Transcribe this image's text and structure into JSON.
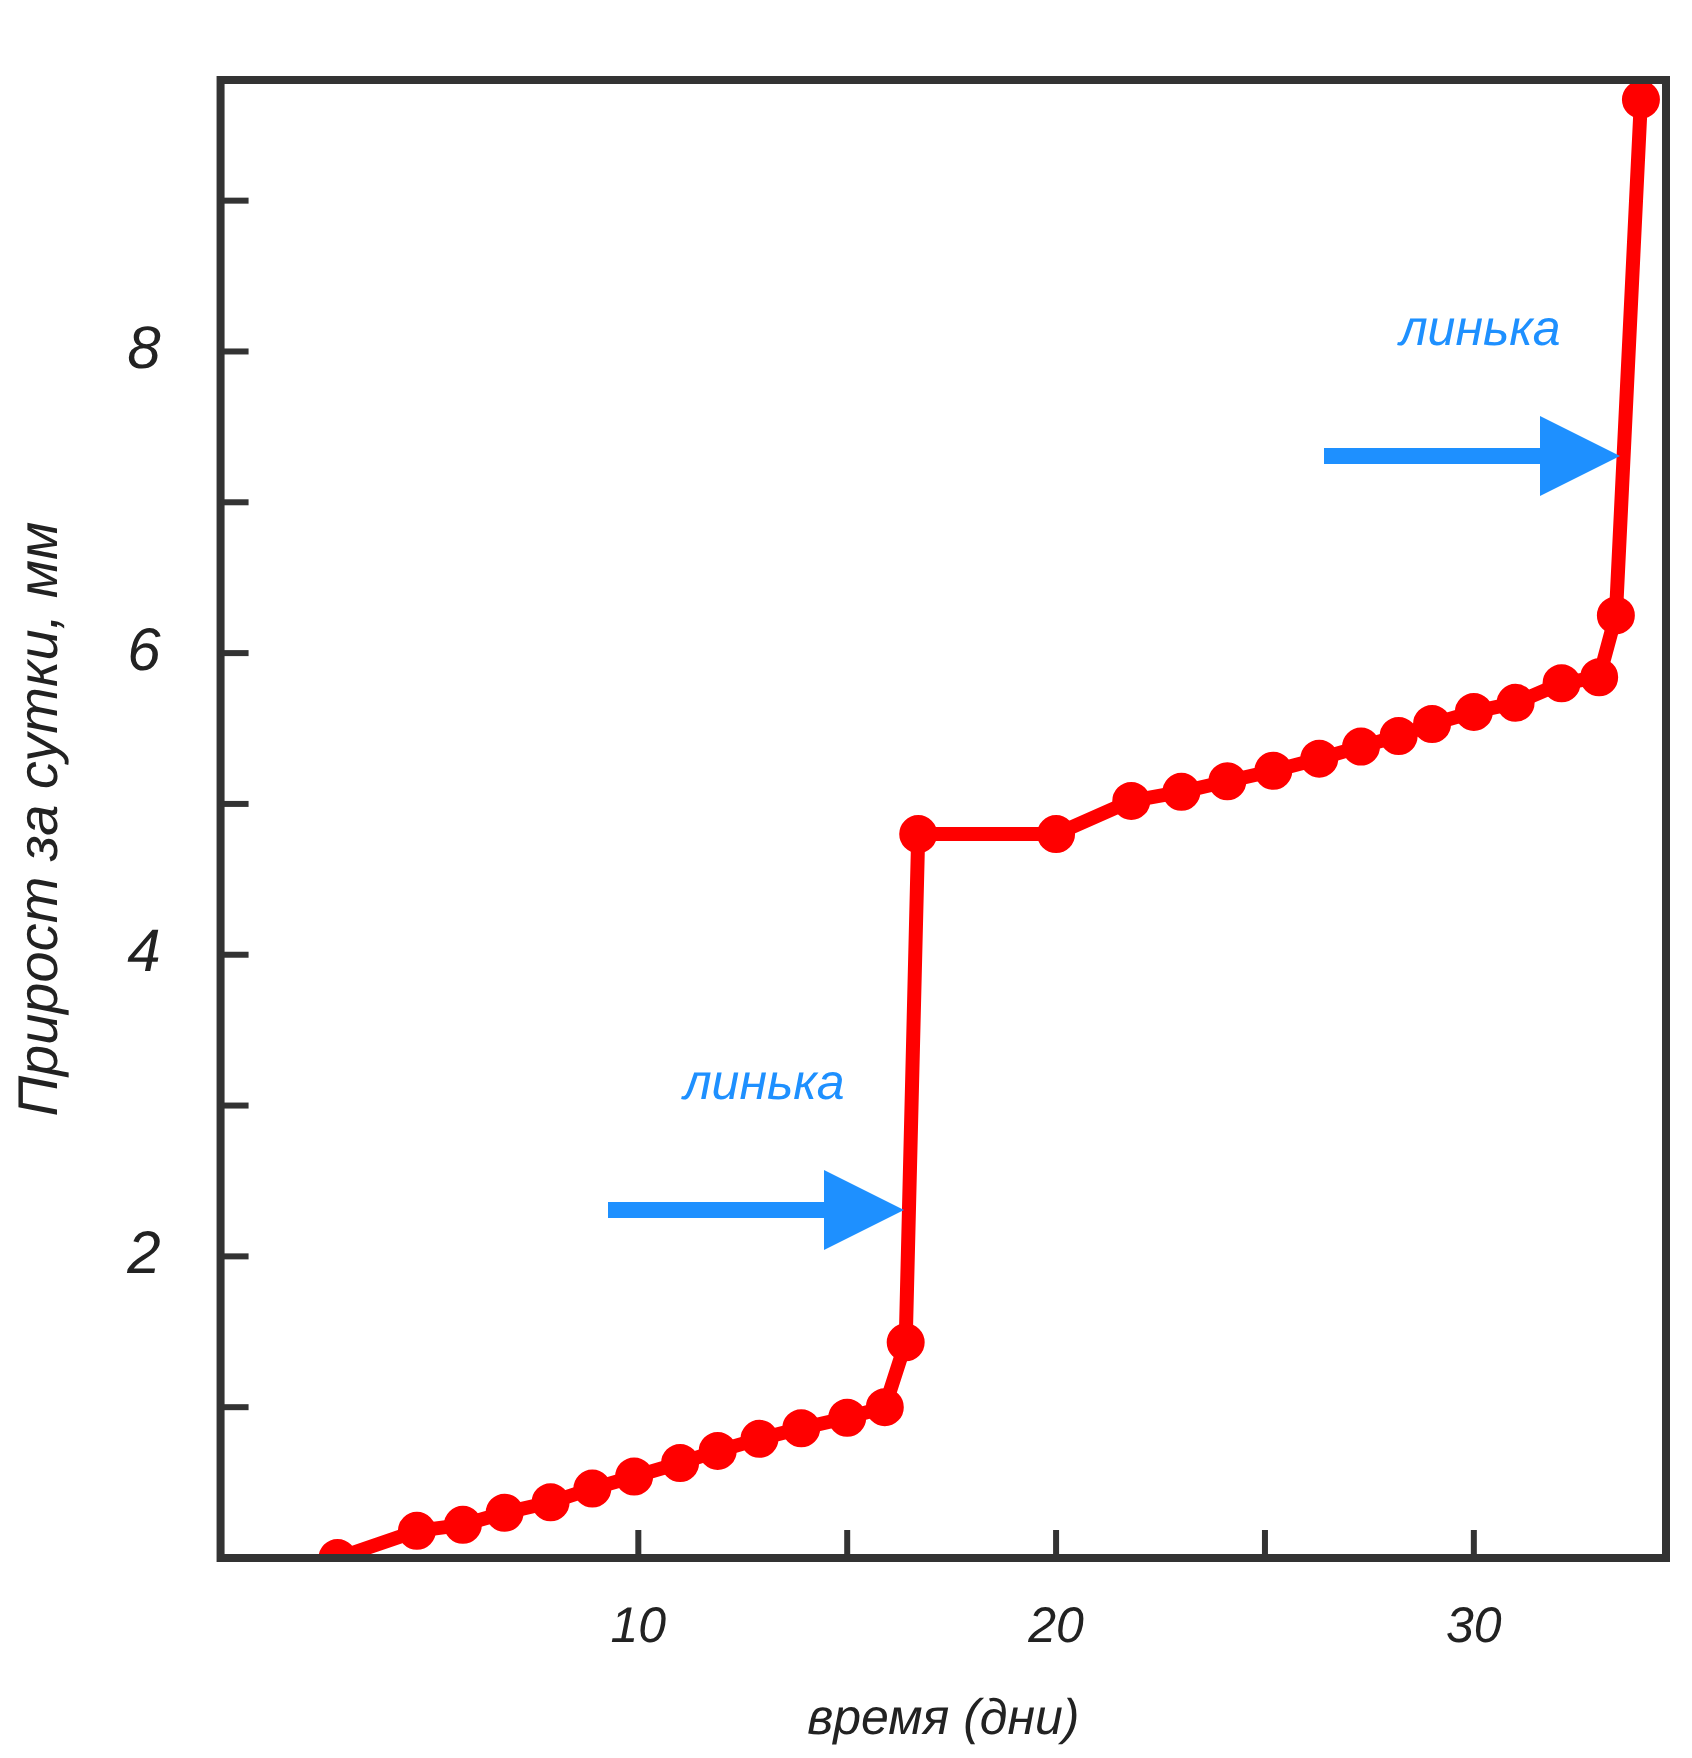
{
  "chart_data": {
    "type": "line",
    "xlabel": "время (дни)",
    "ylabel": "Прирост за сутки, мм",
    "xlim": [
      0,
      34.6
    ],
    "ylim": [
      0,
      9.8
    ],
    "xticks": [
      10,
      {
        "value": 15,
        "label": null
      },
      20,
      {
        "value": 25,
        "label": null
      },
      30
    ],
    "yticks": [
      {
        "value": 1,
        "label": null
      },
      2,
      {
        "value": 3,
        "label": null
      },
      4,
      {
        "value": 5,
        "label": null
      },
      6,
      {
        "value": 7,
        "label": null
      },
      8,
      {
        "value": 9,
        "label": null
      }
    ],
    "grid": false,
    "legend": false,
    "marker": "circle",
    "line_style": "solid",
    "series": [
      {
        "color": "#ff0000",
        "x": [
          2.8,
          4.7,
          5.8,
          6.8,
          7.9,
          8.9,
          9.9,
          11,
          11.9,
          12.9,
          13.9,
          15,
          15.9,
          16.4,
          16.7,
          20,
          21.8,
          23,
          24.1,
          25.2,
          26.3,
          27.3,
          28.2,
          29,
          30,
          31,
          32.1,
          33,
          33.4,
          34
        ],
        "values": [
          0,
          0.18,
          0.22,
          0.3,
          0.37,
          0.46,
          0.54,
          0.63,
          0.71,
          0.79,
          0.86,
          0.93,
          1.0,
          1.43,
          4.8,
          4.8,
          5.02,
          5.08,
          5.15,
          5.22,
          5.3,
          5.38,
          5.45,
          5.53,
          5.61,
          5.67,
          5.8,
          5.84,
          6.25,
          9.67
        ]
      }
    ],
    "annotations": [
      "линька",
      "линька"
    ]
  }
}
